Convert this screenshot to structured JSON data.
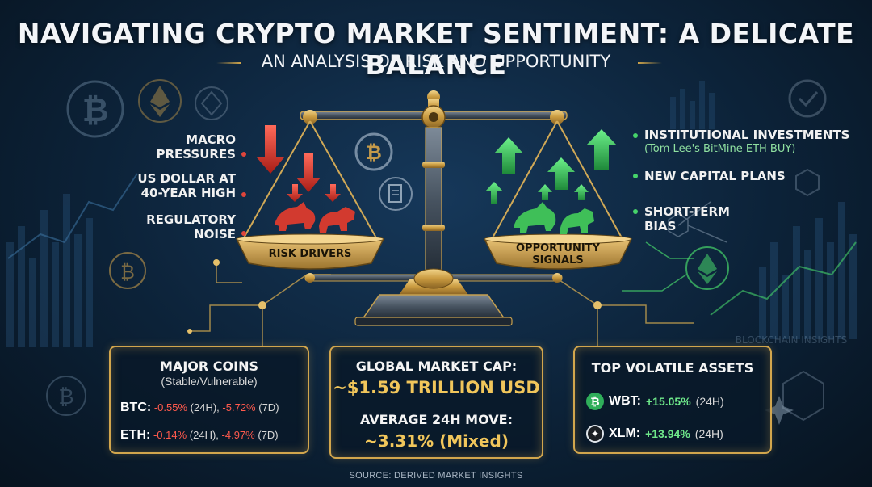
{
  "header": {
    "title": "NAVIGATING CRYPTO MARKET SENTIMENT: A DELICATE BALANCE",
    "subtitle": "AN ANALYSIS OF RISK AND OPPORTUNITY"
  },
  "risk_side": {
    "pan_label": "RISK DRIVERS",
    "items": [
      "MACRO PRESSURES",
      "US DOLLAR AT 40-YEAR HIGH",
      "REGULATORY NOISE"
    ]
  },
  "opportunity_side": {
    "pan_label": "OPPORTUNITY SIGNALS",
    "items": [
      {
        "label": "INSTITUTIONAL INVESTMENTS",
        "note": "(Tom Lee's BitMine ETH BUY)"
      },
      {
        "label": "NEW CAPITAL PLANS",
        "note": ""
      },
      {
        "label": "SHORT-TERM BIAS",
        "note": ""
      }
    ]
  },
  "background_text": "BLOCKCHAIN INSIGHTS",
  "major_coins": {
    "title": "MAJOR COINS",
    "subtitle": "(Stable/Vulnerable)",
    "rows": [
      {
        "coin": "BTC:",
        "change_24h": "-0.55%",
        "label_24h": "(24H),",
        "change_7d": "-5.72%",
        "label_7d": "(7D)"
      },
      {
        "coin": "ETH:",
        "change_24h": "-0.14%",
        "label_24h": "(24H),",
        "change_7d": "-4.97%",
        "label_7d": "(7D)"
      }
    ]
  },
  "market_cap": {
    "label": "GLOBAL MARKET CAP:",
    "value": "~$1.59 TRILLION USD",
    "move_label": "AVERAGE 24H MOVE:",
    "move_value": "~3.31% (Mixed)"
  },
  "volatile": {
    "title": "TOP VOLATILE ASSETS",
    "rows": [
      {
        "coin": "WBT:",
        "change": "+15.05%",
        "period": "(24H)",
        "icon": "wbt-coin-icon",
        "icon_glyph": "₿"
      },
      {
        "coin": "XLM:",
        "change": "+13.94%",
        "period": "(24H)",
        "icon": "stellar-icon",
        "icon_glyph": "✦"
      }
    ]
  },
  "footer": {
    "source": "SOURCE: DERIVED MARKET INSIGHTS"
  },
  "icons": {
    "btc_glyph": "₿",
    "eth_glyph": "◆"
  },
  "colors": {
    "gold": "#d2a64d",
    "risk_red": "#e0453b",
    "opp_green": "#46d36a",
    "bg": "#0c2238"
  }
}
